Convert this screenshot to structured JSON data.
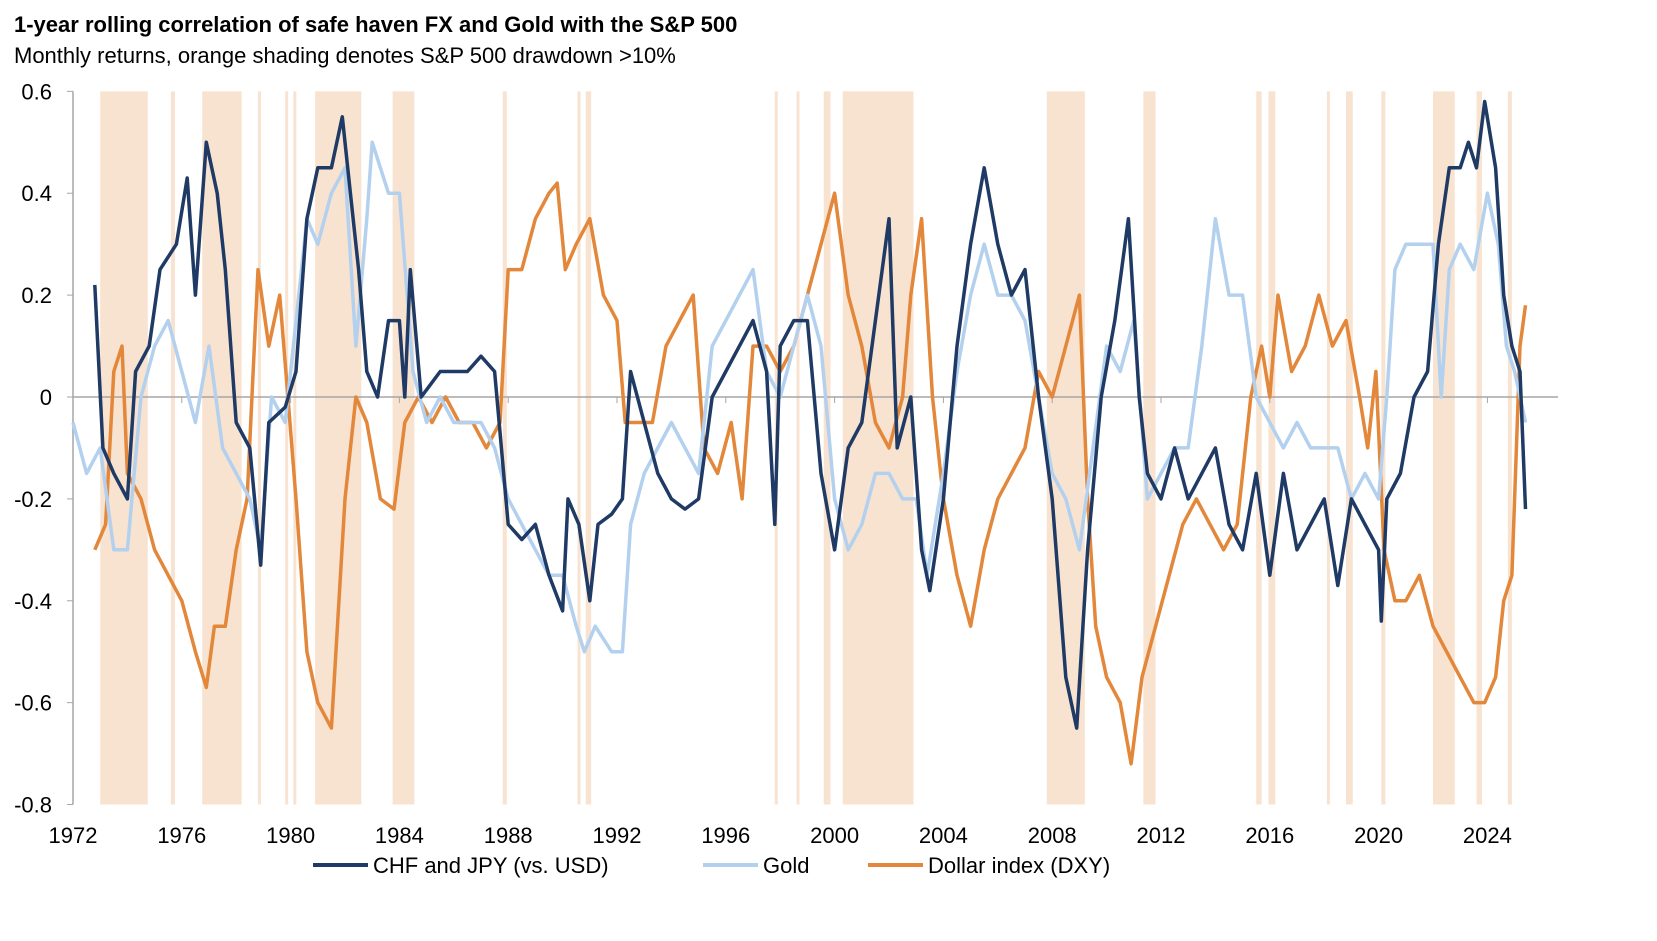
{
  "chart_data": {
    "type": "line",
    "title": "1-year rolling correlation of safe haven FX and Gold with the S&P 500",
    "subtitle": "Monthly returns, orange shading denotes S&P 500 drawdown >10%",
    "xlabel": "",
    "ylabel": "",
    "xlim": [
      1972,
      2026
    ],
    "ylim": [
      -0.8,
      0.6
    ],
    "x_ticks": [
      "1972",
      "1976",
      "1980",
      "1984",
      "1988",
      "1992",
      "1996",
      "2000",
      "2004",
      "2008",
      "2012",
      "2016",
      "2020",
      "2024"
    ],
    "y_ticks": [
      "0.6",
      "0.4",
      "0.2",
      "0",
      "-0.2",
      "-0.4",
      "-0.6",
      "-0.8"
    ],
    "legend_position": "bottom",
    "colors": {
      "chf_jpy": "#1f3a64",
      "gold": "#b3d1ee",
      "dxy": "#e3873b",
      "shading": "#f8e3d1",
      "zero": "#a6a6a6"
    },
    "drawdown_periods": [
      [
        1973.0,
        1974.75
      ],
      [
        1975.6,
        1975.75
      ],
      [
        1976.75,
        1978.2
      ],
      [
        1978.8,
        1978.9
      ],
      [
        1979.8,
        1979.9
      ],
      [
        1980.1,
        1980.2
      ],
      [
        1980.9,
        1982.6
      ],
      [
        1983.75,
        1984.55
      ],
      [
        1987.8,
        1987.95
      ],
      [
        1990.55,
        1990.6
      ],
      [
        1990.85,
        1991.05
      ],
      [
        1997.8,
        1997.85
      ],
      [
        1998.6,
        1998.7
      ],
      [
        1999.6,
        1999.85
      ],
      [
        2000.3,
        2002.9
      ],
      [
        2007.8,
        2009.2
      ],
      [
        2011.35,
        2011.8
      ],
      [
        2015.5,
        2015.7
      ],
      [
        2015.95,
        2016.2
      ],
      [
        2018.1,
        2018.15
      ],
      [
        2018.8,
        2019.05
      ],
      [
        2020.1,
        2020.25
      ],
      [
        2022.0,
        2022.8
      ],
      [
        2023.6,
        2023.8
      ],
      [
        2024.75,
        2024.9
      ]
    ],
    "series": [
      {
        "name": "CHF and JPY (vs. USD)",
        "key": "chf_jpy",
        "x": [
          1972.8,
          1973.1,
          1973.5,
          1974,
          1974.3,
          1974.8,
          1975.2,
          1975.8,
          1976.2,
          1976.5,
          1976.9,
          1977.3,
          1977.6,
          1978,
          1978.5,
          1978.9,
          1979.2,
          1979.8,
          1980.2,
          1980.6,
          1981,
          1981.5,
          1981.9,
          1982.2,
          1982.5,
          1982.8,
          1983.2,
          1983.6,
          1984,
          1984.2,
          1984.4,
          1984.8,
          1985.5,
          1986,
          1986.5,
          1987,
          1987.5,
          1988,
          1988.5,
          1989,
          1989.5,
          1990,
          1990.2,
          1990.6,
          1991,
          1991.3,
          1991.8,
          1992.2,
          1992.5,
          1993,
          1993.5,
          1994,
          1994.5,
          1995,
          1995.5,
          1996,
          1996.5,
          1997,
          1997.5,
          1997.8,
          1998,
          1998.5,
          1999,
          1999.5,
          2000,
          2000.5,
          2001,
          2001.5,
          2002,
          2002.3,
          2002.8,
          2003.2,
          2003.5,
          2004,
          2004.5,
          2005,
          2005.5,
          2006,
          2006.5,
          2007,
          2007.5,
          2008,
          2008.5,
          2008.9,
          2009.3,
          2009.8,
          2010.3,
          2010.8,
          2011.2,
          2011.5,
          2012,
          2012.5,
          2013,
          2013.5,
          2014,
          2014.5,
          2015,
          2015.5,
          2016,
          2016.5,
          2017,
          2017.5,
          2018,
          2018.5,
          2019,
          2019.5,
          2020,
          2020.1,
          2020.3,
          2020.8,
          2021.3,
          2021.8,
          2022.2,
          2022.6,
          2023,
          2023.3,
          2023.6,
          2023.9,
          2024.3,
          2024.6,
          2024.9,
          2025.2,
          2025.4
        ],
        "values": [
          0.22,
          -0.1,
          -0.15,
          -0.2,
          0.05,
          0.1,
          0.25,
          0.3,
          0.43,
          0.2,
          0.5,
          0.4,
          0.25,
          -0.05,
          -0.1,
          -0.33,
          -0.05,
          -0.02,
          0.05,
          0.35,
          0.45,
          0.45,
          0.55,
          0.4,
          0.25,
          0.05,
          0.0,
          0.15,
          0.15,
          0.0,
          0.25,
          0.0,
          0.05,
          0.05,
          0.05,
          0.08,
          0.05,
          -0.25,
          -0.28,
          -0.25,
          -0.35,
          -0.42,
          -0.2,
          -0.25,
          -0.4,
          -0.25,
          -0.23,
          -0.2,
          0.05,
          -0.05,
          -0.15,
          -0.2,
          -0.22,
          -0.2,
          0.0,
          0.05,
          0.1,
          0.15,
          0.05,
          -0.25,
          0.1,
          0.15,
          0.15,
          -0.15,
          -0.3,
          -0.1,
          -0.05,
          0.15,
          0.35,
          -0.1,
          0.0,
          -0.3,
          -0.38,
          -0.2,
          0.1,
          0.3,
          0.45,
          0.3,
          0.2,
          0.25,
          0.0,
          -0.2,
          -0.55,
          -0.65,
          -0.3,
          0.0,
          0.15,
          0.35,
          0.0,
          -0.15,
          -0.2,
          -0.1,
          -0.2,
          -0.15,
          -0.1,
          -0.25,
          -0.3,
          -0.15,
          -0.35,
          -0.15,
          -0.3,
          -0.25,
          -0.2,
          -0.37,
          -0.2,
          -0.25,
          -0.3,
          -0.44,
          -0.2,
          -0.15,
          0.0,
          0.05,
          0.3,
          0.45,
          0.45,
          0.5,
          0.45,
          0.58,
          0.45,
          0.2,
          0.1,
          0.05,
          -0.22
        ]
      },
      {
        "name": "Gold",
        "key": "gold",
        "x": [
          1972,
          1972.5,
          1973,
          1973.5,
          1974,
          1974.5,
          1975,
          1975.5,
          1976,
          1976.5,
          1977,
          1977.5,
          1978,
          1978.5,
          1978.9,
          1979.3,
          1979.8,
          1980.3,
          1980.6,
          1981,
          1981.5,
          1982,
          1982.4,
          1982.8,
          1983,
          1983.3,
          1983.6,
          1984,
          1984.5,
          1985,
          1985.5,
          1986,
          1986.5,
          1987,
          1987.5,
          1988,
          1988.5,
          1989,
          1989.5,
          1990,
          1990.5,
          1990.8,
          1991.2,
          1991.8,
          1992.2,
          1992.5,
          1993,
          1993.5,
          1994,
          1994.5,
          1995,
          1995.5,
          1996,
          1996.5,
          1997,
          1997.5,
          1998,
          1998.5,
          1999,
          1999.5,
          2000,
          2000.5,
          2001,
          2001.5,
          2002,
          2002.5,
          2003,
          2003.4,
          2004,
          2004.5,
          2005,
          2005.5,
          2006,
          2006.5,
          2007,
          2007.5,
          2008,
          2008.5,
          2009,
          2009.5,
          2010,
          2010.5,
          2011,
          2011.5,
          2012,
          2012.5,
          2013,
          2013.5,
          2014,
          2014.5,
          2015,
          2015.5,
          2016,
          2016.5,
          2017,
          2017.5,
          2018,
          2018.5,
          2019,
          2019.5,
          2020,
          2020.3,
          2020.6,
          2021,
          2021.5,
          2022,
          2022.3,
          2022.6,
          2023,
          2023.5,
          2024,
          2024.4,
          2024.7,
          2025,
          2025.4
        ],
        "values": [
          -0.05,
          -0.15,
          -0.1,
          -0.3,
          -0.3,
          0.0,
          0.1,
          0.15,
          0.05,
          -0.05,
          0.1,
          -0.1,
          -0.15,
          -0.2,
          -0.3,
          0.0,
          -0.05,
          0.2,
          0.35,
          0.3,
          0.4,
          0.45,
          0.1,
          0.35,
          0.5,
          0.45,
          0.4,
          0.4,
          0.05,
          -0.05,
          0.0,
          -0.05,
          -0.05,
          -0.05,
          -0.1,
          -0.2,
          -0.25,
          -0.3,
          -0.35,
          -0.35,
          -0.45,
          -0.5,
          -0.45,
          -0.5,
          -0.5,
          -0.25,
          -0.15,
          -0.1,
          -0.05,
          -0.1,
          -0.15,
          0.1,
          0.15,
          0.2,
          0.25,
          0.05,
          0.0,
          0.1,
          0.2,
          0.1,
          -0.2,
          -0.3,
          -0.25,
          -0.15,
          -0.15,
          -0.2,
          -0.2,
          -0.35,
          -0.15,
          0.05,
          0.2,
          0.3,
          0.2,
          0.2,
          0.15,
          0.0,
          -0.15,
          -0.2,
          -0.3,
          -0.1,
          0.1,
          0.05,
          0.15,
          -0.2,
          -0.15,
          -0.1,
          -0.1,
          0.1,
          0.35,
          0.2,
          0.2,
          0.0,
          -0.05,
          -0.1,
          -0.05,
          -0.1,
          -0.1,
          -0.1,
          -0.2,
          -0.15,
          -0.2,
          0.0,
          0.25,
          0.3,
          0.3,
          0.3,
          0.0,
          0.25,
          0.3,
          0.25,
          0.4,
          0.3,
          0.1,
          0.05,
          -0.05
        ]
      },
      {
        "name": "Dollar index (DXY)",
        "key": "dxy",
        "x": [
          1972.8,
          1973.2,
          1973.5,
          1973.8,
          1974,
          1974.5,
          1975,
          1975.5,
          1976,
          1976.5,
          1976.9,
          1977.2,
          1977.6,
          1978,
          1978.4,
          1978.8,
          1979.2,
          1979.6,
          1979.9,
          1980.2,
          1980.6,
          1981,
          1981.5,
          1982,
          1982.4,
          1982.8,
          1983.3,
          1983.8,
          1984.2,
          1984.7,
          1985.2,
          1985.7,
          1986.2,
          1986.7,
          1987.2,
          1987.7,
          1988,
          1988.5,
          1989,
          1989.5,
          1989.8,
          1990.1,
          1990.5,
          1991,
          1991.5,
          1992,
          1992.3,
          1992.8,
          1993.3,
          1993.8,
          1994.3,
          1994.8,
          1995.2,
          1995.7,
          1996.2,
          1996.6,
          1997,
          1997.5,
          1998,
          1998.5,
          1999,
          1999.5,
          2000,
          2000.5,
          2001,
          2001.5,
          2002,
          2002.5,
          2002.8,
          2003.2,
          2003.6,
          2004,
          2004.5,
          2005,
          2005.5,
          2006,
          2006.5,
          2007,
          2007.5,
          2008,
          2008.5,
          2009,
          2009.3,
          2009.6,
          2010,
          2010.5,
          2010.9,
          2011.3,
          2011.8,
          2012.3,
          2012.8,
          2013.3,
          2013.8,
          2014.3,
          2014.8,
          2015.3,
          2015.7,
          2016,
          2016.3,
          2016.8,
          2017.3,
          2017.8,
          2018.3,
          2018.8,
          2019.3,
          2019.6,
          2019.9,
          2020.2,
          2020.6,
          2021,
          2021.5,
          2022,
          2022.5,
          2023,
          2023.5,
          2023.9,
          2024.3,
          2024.6,
          2024.9,
          2025.2,
          2025.4
        ],
        "values": [
          -0.3,
          -0.25,
          0.05,
          0.1,
          -0.15,
          -0.2,
          -0.3,
          -0.35,
          -0.4,
          -0.5,
          -0.57,
          -0.45,
          -0.45,
          -0.3,
          -0.2,
          0.25,
          0.1,
          0.2,
          0.0,
          -0.2,
          -0.5,
          -0.6,
          -0.65,
          -0.2,
          0.0,
          -0.05,
          -0.2,
          -0.22,
          -0.05,
          0.0,
          -0.05,
          0.0,
          -0.05,
          -0.05,
          -0.1,
          -0.05,
          0.25,
          0.25,
          0.35,
          0.4,
          0.42,
          0.25,
          0.3,
          0.35,
          0.2,
          0.15,
          -0.05,
          -0.05,
          -0.05,
          0.1,
          0.15,
          0.2,
          -0.1,
          -0.15,
          -0.05,
          -0.2,
          0.1,
          0.1,
          0.05,
          0.1,
          0.2,
          0.3,
          0.4,
          0.2,
          0.1,
          -0.05,
          -0.1,
          0.0,
          0.2,
          0.35,
          0.0,
          -0.2,
          -0.35,
          -0.45,
          -0.3,
          -0.2,
          -0.15,
          -0.1,
          0.05,
          0.0,
          0.1,
          0.2,
          -0.2,
          -0.45,
          -0.55,
          -0.6,
          -0.72,
          -0.55,
          -0.45,
          -0.35,
          -0.25,
          -0.2,
          -0.25,
          -0.3,
          -0.25,
          0.0,
          0.1,
          0.0,
          0.2,
          0.05,
          0.1,
          0.2,
          0.1,
          0.15,
          0.0,
          -0.1,
          0.05,
          -0.3,
          -0.4,
          -0.4,
          -0.35,
          -0.45,
          -0.5,
          -0.55,
          -0.6,
          -0.6,
          -0.55,
          -0.4,
          -0.35,
          0.1,
          0.18
        ]
      }
    ]
  }
}
